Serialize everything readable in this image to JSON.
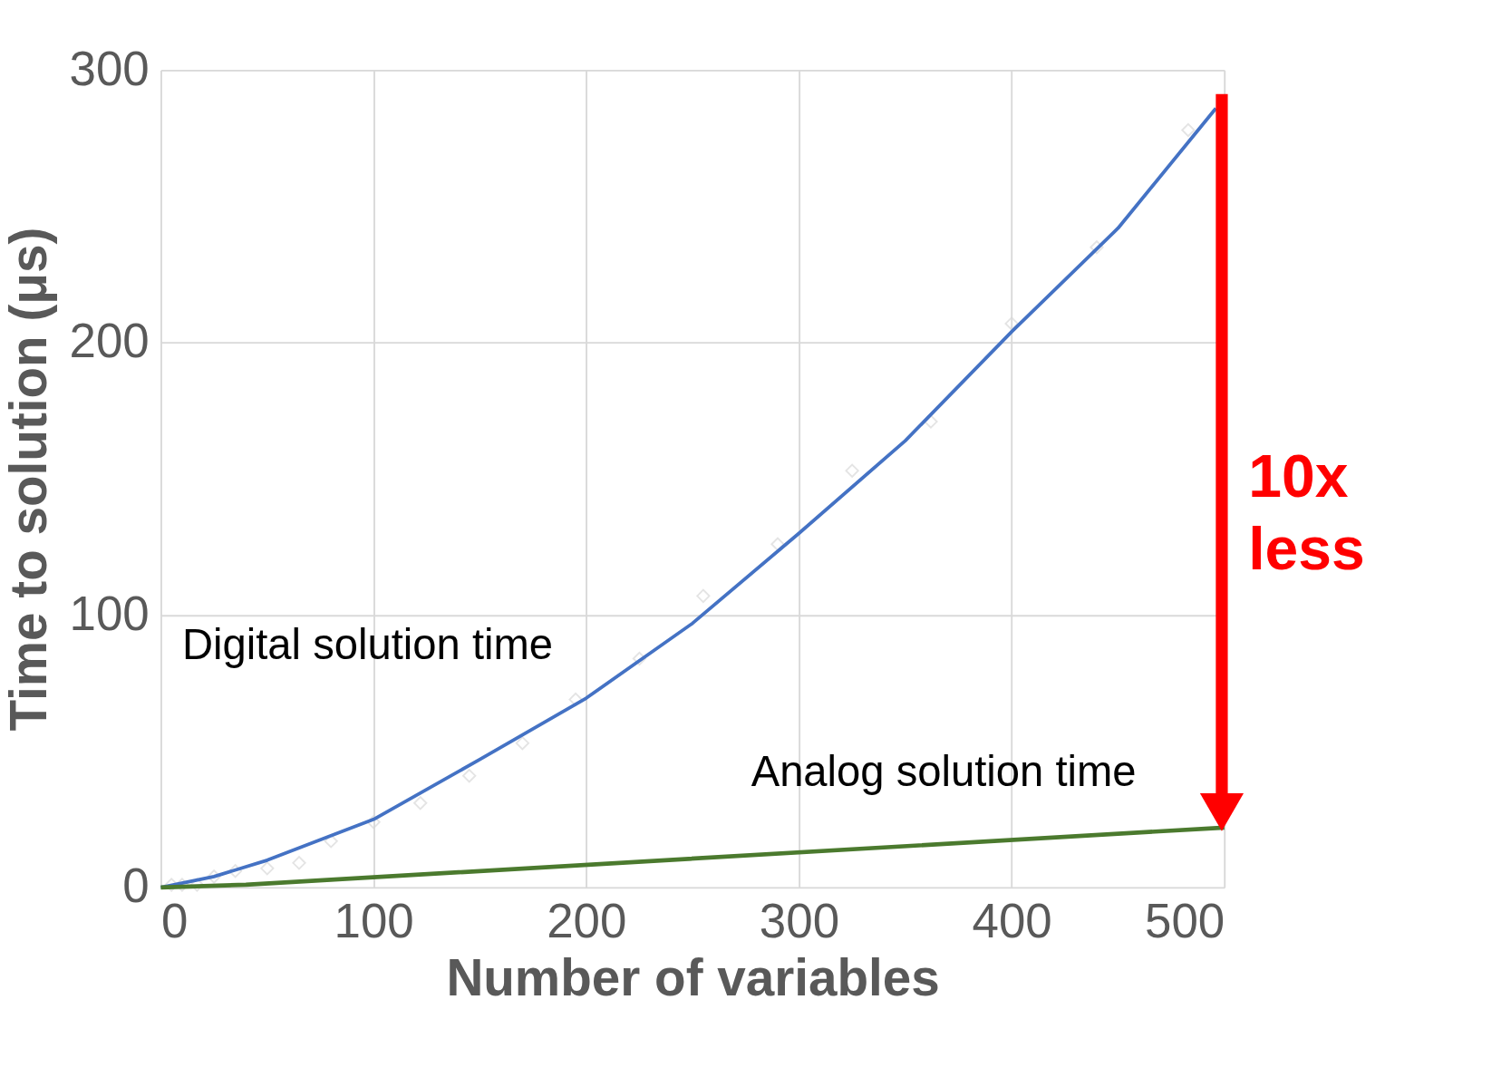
{
  "chart_data": {
    "type": "line",
    "xlabel": "Number of variables",
    "ylabel": "Time to solution (μs)",
    "xlim": [
      0,
      500
    ],
    "ylim": [
      0,
      300
    ],
    "xticks": [
      0,
      100,
      200,
      300,
      400,
      500
    ],
    "yticks": [
      0,
      100,
      200,
      300
    ],
    "grid": true,
    "series": [
      {
        "type": "scatter",
        "color": "#d9d9d9",
        "marker": "diamond",
        "x": [
          5,
          10,
          17,
          25,
          35,
          50,
          65,
          80,
          100,
          122,
          145,
          170,
          195,
          225,
          255,
          290,
          325,
          362,
          400,
          440,
          483
        ],
        "values": [
          1,
          1,
          1,
          4,
          6,
          7,
          9,
          17,
          24,
          31,
          41,
          53,
          69,
          84,
          107,
          126,
          153,
          171,
          207,
          235,
          278
        ]
      },
      {
        "color": "#4472c4",
        "x": [
          0,
          25,
          50,
          100,
          150,
          200,
          250,
          300,
          350,
          400,
          450,
          496
        ],
        "values": [
          0,
          4,
          10,
          25,
          47,
          69.5,
          97,
          130,
          164,
          204,
          242,
          286
        ]
      },
      {
        "color": "#4b7a2e",
        "x": [
          0,
          40,
          500
        ],
        "values": [
          0,
          1,
          22
        ]
      }
    ],
    "annotations": [
      "Digital solution time",
      "Analog solution time",
      "10x less"
    ]
  }
}
